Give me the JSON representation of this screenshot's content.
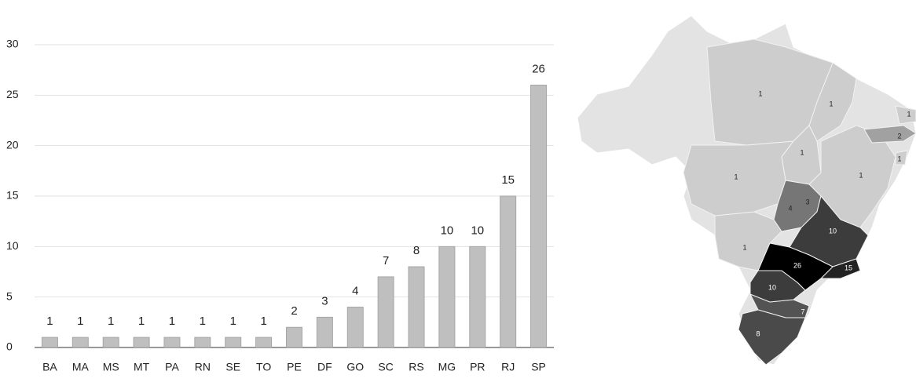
{
  "chart_data": {
    "type": "bar",
    "categories": [
      "BA",
      "MA",
      "MS",
      "MT",
      "PA",
      "RN",
      "SE",
      "TO",
      "PE",
      "DF",
      "GO",
      "SC",
      "RS",
      "MG",
      "PR",
      "RJ",
      "SP"
    ],
    "values": [
      1,
      1,
      1,
      1,
      1,
      1,
      1,
      1,
      2,
      3,
      4,
      7,
      8,
      10,
      10,
      15,
      26
    ],
    "color": "#bfbfbf",
    "ylim": [
      0,
      30
    ],
    "yticks": [
      0,
      5,
      10,
      15,
      20,
      25,
      30
    ],
    "grid": true
  }
}
